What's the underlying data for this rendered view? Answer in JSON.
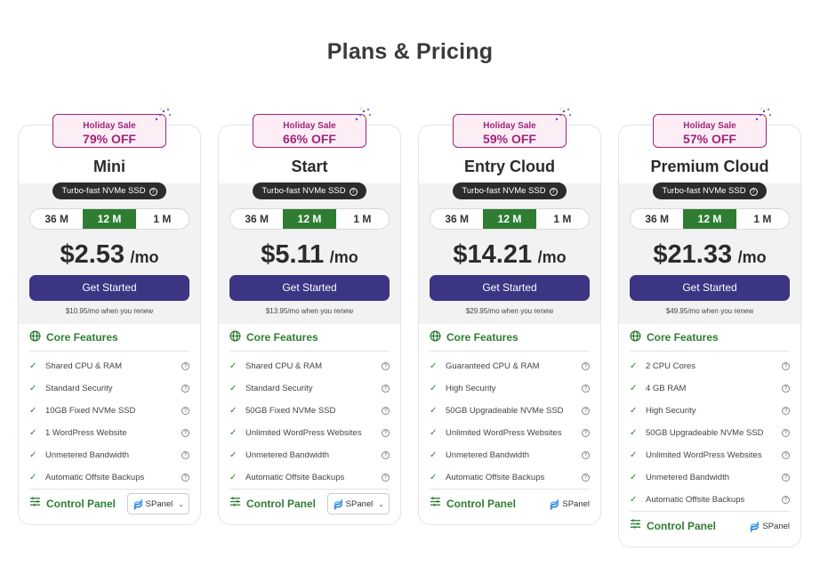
{
  "page": {
    "title": "Plans & Pricing"
  },
  "colors": {
    "accent_green": "#2e7d32",
    "cta_purple": "#3b3584",
    "sale_magenta": "#a0247a"
  },
  "icons": {
    "core": "globe-grid-icon",
    "control_panel": "sliders-icon",
    "check": "check-icon",
    "help": "question-icon",
    "spanel": "spanel-logo-icon"
  },
  "plans": [
    {
      "sale_line": "Holiday Sale",
      "sale_off": "79% OFF",
      "name": "Mini",
      "ssd_label": "Turbo-fast NVMe SSD",
      "terms": [
        "36 M",
        "12 M",
        "1 M"
      ],
      "active_term": "12 M",
      "price": "$2.53",
      "unit": "/mo",
      "cta": "Get Started",
      "renew_price": "$10.95",
      "renew_text": "/mo when you renew",
      "core_title": "Core Features",
      "features": [
        "Shared CPU & RAM",
        "Standard Security",
        "10GB Fixed NVMe SSD",
        "1 WordPress Website",
        "Unmetered Bandwidth",
        "Automatic Offsite Backups"
      ],
      "cp_title": "Control Panel",
      "cp_value": "SPanel",
      "cp_dropdown": true
    },
    {
      "sale_line": "Holiday Sale",
      "sale_off": "66% OFF",
      "name": "Start",
      "ssd_label": "Turbo-fast NVMe SSD",
      "terms": [
        "36 M",
        "12 M",
        "1 M"
      ],
      "active_term": "12 M",
      "price": "$5.11",
      "unit": "/mo",
      "cta": "Get Started",
      "renew_price": "$13.95",
      "renew_text": "/mo when you renew",
      "core_title": "Core Features",
      "features": [
        "Shared CPU & RAM",
        "Standard Security",
        "50GB Fixed NVMe SSD",
        "Unlimited WordPress Websites",
        "Unmetered Bandwidth",
        "Automatic Offsite Backups"
      ],
      "cp_title": "Control Panel",
      "cp_value": "SPanel",
      "cp_dropdown": true
    },
    {
      "sale_line": "Holiday Sale",
      "sale_off": "59% OFF",
      "name": "Entry Cloud",
      "ssd_label": "Turbo-fast NVMe SSD",
      "terms": [
        "36 M",
        "12 M",
        "1 M"
      ],
      "active_term": "12 M",
      "price": "$14.21",
      "unit": "/mo",
      "cta": "Get Started",
      "renew_price": "$29.95",
      "renew_text": "/mo when you renew",
      "core_title": "Core Features",
      "features": [
        "Guaranteed CPU & RAM",
        "High Security",
        "50GB Upgradeable NVMe SSD",
        "Unlimited WordPress Websites",
        "Unmetered Bandwidth",
        "Automatic Offsite Backups"
      ],
      "cp_title": "Control Panel",
      "cp_value": "SPanel",
      "cp_dropdown": false
    },
    {
      "sale_line": "Holiday Sale",
      "sale_off": "57% OFF",
      "name": "Premium Cloud",
      "ssd_label": "Turbo-fast NVMe SSD",
      "terms": [
        "36 M",
        "12 M",
        "1 M"
      ],
      "active_term": "12 M",
      "price": "$21.33",
      "unit": "/mo",
      "cta": "Get Started",
      "renew_price": "$49.95",
      "renew_text": "/mo when you renew",
      "core_title": "Core Features",
      "features": [
        "2 CPU Cores",
        "4 GB RAM",
        "High Security",
        "50GB Upgradeable NVMe SSD",
        "Unlimited WordPress Websites",
        "Unmetered Bandwidth",
        "Automatic Offsite Backups"
      ],
      "cp_title": "Control Panel",
      "cp_value": "SPanel",
      "cp_dropdown": false
    }
  ]
}
